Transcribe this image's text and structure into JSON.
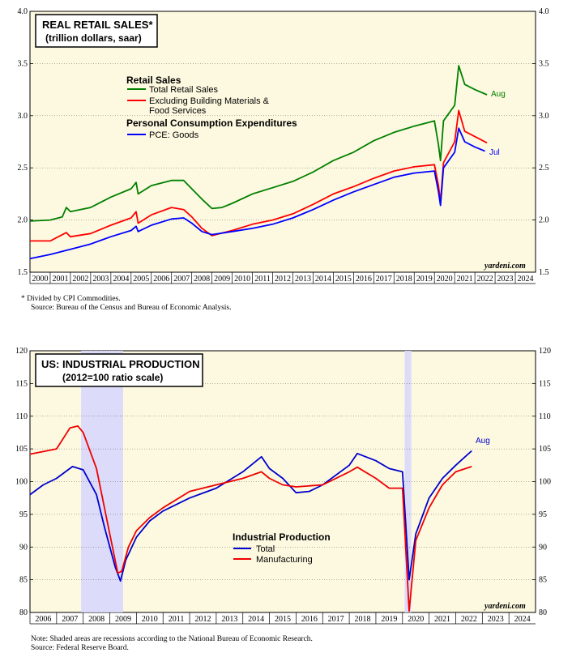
{
  "chart_data": [
    {
      "type": "line",
      "title": "REAL RETAIL SALES*",
      "subtitle": "(trillion dollars, saar)",
      "ylim": [
        1.5,
        4.0
      ],
      "yticks": [
        "1.5",
        "2.0",
        "2.5",
        "3.0",
        "3.5",
        "4.0"
      ],
      "xlim": [
        2000,
        2025
      ],
      "xticks": [
        "2000",
        "2001",
        "2002",
        "2003",
        "2004",
        "2005",
        "2006",
        "2007",
        "2008",
        "2009",
        "2010",
        "2011",
        "2012",
        "2013",
        "2014",
        "2015",
        "2016",
        "2017",
        "2018",
        "2019",
        "2020",
        "2021",
        "2022",
        "2023",
        "2024"
      ],
      "legend_heading_1": "Retail Sales",
      "legend_heading_2": "Personal Consumption Expenditures",
      "series": [
        {
          "name": "Total Retail Sales",
          "color": "#008000",
          "end_label": "Aug",
          "points": [
            [
              2000,
              1.99
            ],
            [
              2001,
              2.0
            ],
            [
              2001.6,
              2.03
            ],
            [
              2001.8,
              2.12
            ],
            [
              2002,
              2.08
            ],
            [
              2003,
              2.12
            ],
            [
              2004,
              2.22
            ],
            [
              2005,
              2.3
            ],
            [
              2005.25,
              2.36
            ],
            [
              2005.35,
              2.25
            ],
            [
              2006,
              2.33
            ],
            [
              2007,
              2.38
            ],
            [
              2007.6,
              2.38
            ],
            [
              2008,
              2.3
            ],
            [
              2008.5,
              2.2
            ],
            [
              2009,
              2.11
            ],
            [
              2009.5,
              2.12
            ],
            [
              2010,
              2.16
            ],
            [
              2011,
              2.25
            ],
            [
              2012,
              2.31
            ],
            [
              2013,
              2.37
            ],
            [
              2014,
              2.46
            ],
            [
              2015,
              2.57
            ],
            [
              2016,
              2.65
            ],
            [
              2017,
              2.76
            ],
            [
              2018,
              2.84
            ],
            [
              2019,
              2.9
            ],
            [
              2020,
              2.95
            ],
            [
              2020.2,
              2.72
            ],
            [
              2020.3,
              2.57
            ],
            [
              2020.45,
              2.95
            ],
            [
              2021,
              3.1
            ],
            [
              2021.2,
              3.48
            ],
            [
              2021.5,
              3.3
            ],
            [
              2022,
              3.25
            ],
            [
              2022.6,
              3.2
            ]
          ]
        },
        {
          "name": "Excluding Building Materials & Food Services",
          "color": "#ff0000",
          "end_label": "",
          "points": [
            [
              2000,
              1.8
            ],
            [
              2001,
              1.8
            ],
            [
              2001.8,
              1.88
            ],
            [
              2002,
              1.84
            ],
            [
              2003,
              1.87
            ],
            [
              2004,
              1.95
            ],
            [
              2005,
              2.02
            ],
            [
              2005.25,
              2.08
            ],
            [
              2005.35,
              1.97
            ],
            [
              2006,
              2.05
            ],
            [
              2007,
              2.12
            ],
            [
              2007.6,
              2.1
            ],
            [
              2008,
              2.03
            ],
            [
              2008.5,
              1.92
            ],
            [
              2009,
              1.85
            ],
            [
              2010,
              1.9
            ],
            [
              2011,
              1.96
            ],
            [
              2012,
              2.0
            ],
            [
              2013,
              2.06
            ],
            [
              2014,
              2.15
            ],
            [
              2015,
              2.25
            ],
            [
              2016,
              2.32
            ],
            [
              2017,
              2.4
            ],
            [
              2018,
              2.47
            ],
            [
              2019,
              2.51
            ],
            [
              2020,
              2.53
            ],
            [
              2020.2,
              2.33
            ],
            [
              2020.3,
              2.17
            ],
            [
              2020.45,
              2.55
            ],
            [
              2021,
              2.75
            ],
            [
              2021.2,
              3.05
            ],
            [
              2021.5,
              2.85
            ],
            [
              2022,
              2.8
            ],
            [
              2022.6,
              2.74
            ]
          ]
        },
        {
          "name": "PCE: Goods",
          "color": "#0000ff",
          "end_label": "Jul",
          "points": [
            [
              2000,
              1.63
            ],
            [
              2001,
              1.67
            ],
            [
              2001.8,
              1.71
            ],
            [
              2002,
              1.72
            ],
            [
              2003,
              1.77
            ],
            [
              2004,
              1.84
            ],
            [
              2005,
              1.9
            ],
            [
              2005.25,
              1.94
            ],
            [
              2005.35,
              1.89
            ],
            [
              2006,
              1.95
            ],
            [
              2007,
              2.01
            ],
            [
              2007.6,
              2.02
            ],
            [
              2008,
              1.97
            ],
            [
              2008.5,
              1.89
            ],
            [
              2009,
              1.86
            ],
            [
              2010,
              1.89
            ],
            [
              2011,
              1.92
            ],
            [
              2012,
              1.96
            ],
            [
              2013,
              2.02
            ],
            [
              2014,
              2.1
            ],
            [
              2015,
              2.19
            ],
            [
              2016,
              2.27
            ],
            [
              2017,
              2.34
            ],
            [
              2018,
              2.41
            ],
            [
              2019,
              2.45
            ],
            [
              2020,
              2.47
            ],
            [
              2020.2,
              2.27
            ],
            [
              2020.3,
              2.14
            ],
            [
              2020.45,
              2.5
            ],
            [
              2021,
              2.65
            ],
            [
              2021.2,
              2.88
            ],
            [
              2021.5,
              2.75
            ],
            [
              2022,
              2.7
            ],
            [
              2022.5,
              2.66
            ]
          ]
        }
      ]
    },
    {
      "type": "line",
      "title": "US: INDUSTRIAL PRODUCTION",
      "subtitle": "(2012=100 ratio scale)",
      "ylim": [
        80,
        120
      ],
      "yticks": [
        "80",
        "85",
        "90",
        "95",
        "100",
        "105",
        "110",
        "115",
        "120"
      ],
      "xlim": [
        2006,
        2025
      ],
      "xticks": [
        "2006",
        "2007",
        "2008",
        "2009",
        "2010",
        "2011",
        "2012",
        "2013",
        "2014",
        "2015",
        "2016",
        "2017",
        "2018",
        "2019",
        "2020",
        "2021",
        "2022",
        "2023",
        "2024"
      ],
      "recessions": [
        [
          2007.92,
          2009.5
        ],
        [
          2020.08,
          2020.33
        ]
      ],
      "legend_heading": "Industrial Production",
      "series": [
        {
          "name": "Total",
          "color": "#0000cc",
          "end_label": "Aug",
          "points": [
            [
              2006,
              98
            ],
            [
              2006.5,
              99.5
            ],
            [
              2007,
              100.5
            ],
            [
              2007.6,
              102.3
            ],
            [
              2008,
              101.8
            ],
            [
              2008.5,
              98
            ],
            [
              2008.8,
              93
            ],
            [
              2009.2,
              87
            ],
            [
              2009.4,
              84.8
            ],
            [
              2009.6,
              88
            ],
            [
              2010,
              91.5
            ],
            [
              2010.5,
              94
            ],
            [
              2011,
              95.5
            ],
            [
              2012,
              97.5
            ],
            [
              2013,
              99
            ],
            [
              2014,
              101.5
            ],
            [
              2014.7,
              103.8
            ],
            [
              2015,
              102
            ],
            [
              2015.5,
              100.5
            ],
            [
              2016,
              98.3
            ],
            [
              2016.5,
              98.5
            ],
            [
              2017,
              99.5
            ],
            [
              2018,
              102.5
            ],
            [
              2018.3,
              104.3
            ],
            [
              2019,
              103.2
            ],
            [
              2019.5,
              102
            ],
            [
              2020,
              101.5
            ],
            [
              2020.25,
              85
            ],
            [
              2020.5,
              92
            ],
            [
              2021,
              97.5
            ],
            [
              2021.5,
              100.5
            ],
            [
              2022,
              102.5
            ],
            [
              2022.6,
              104.7
            ]
          ]
        },
        {
          "name": "Manufacturing",
          "color": "#ee0000",
          "end_label": "",
          "points": [
            [
              2006,
              104.2
            ],
            [
              2007,
              105
            ],
            [
              2007.5,
              108.2
            ],
            [
              2007.8,
              108.5
            ],
            [
              2008,
              107.5
            ],
            [
              2008.5,
              102
            ],
            [
              2008.9,
              94
            ],
            [
              2009.3,
              86
            ],
            [
              2009.45,
              86.3
            ],
            [
              2009.7,
              90
            ],
            [
              2010,
              92.5
            ],
            [
              2010.5,
              94.5
            ],
            [
              2011,
              96
            ],
            [
              2012,
              98.5
            ],
            [
              2013,
              99.5
            ],
            [
              2014,
              100.5
            ],
            [
              2014.7,
              101.5
            ],
            [
              2015,
              100.5
            ],
            [
              2015.5,
              99.5
            ],
            [
              2016,
              99.2
            ],
            [
              2017,
              99.5
            ],
            [
              2018,
              101.5
            ],
            [
              2018.3,
              102.2
            ],
            [
              2019,
              100.5
            ],
            [
              2019.5,
              99
            ],
            [
              2020,
              99
            ],
            [
              2020.25,
              80.2
            ],
            [
              2020.5,
              91
            ],
            [
              2021,
              96
            ],
            [
              2021.5,
              99.5
            ],
            [
              2022,
              101.5
            ],
            [
              2022.6,
              102.3
            ]
          ]
        }
      ]
    }
  ],
  "notes": {
    "top_1": "*   Divided by CPI Commodities.",
    "top_2": "Source: Bureau of the Census and Bureau of Economic Analysis.",
    "bottom_1": "Note: Shaded areas are recessions according to the National Bureau of Economic Research.",
    "bottom_2": "Source: Federal Reserve Board."
  },
  "credit": "yardeni.com"
}
